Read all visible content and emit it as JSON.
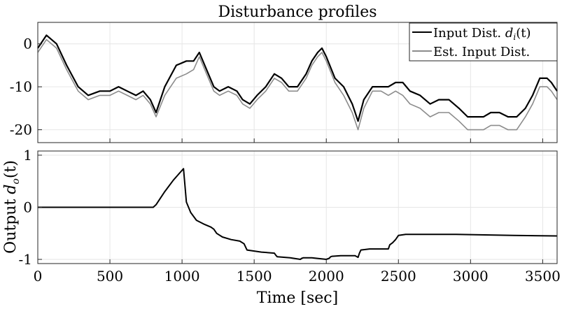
{
  "chart_data": [
    {
      "type": "line",
      "title": "Disturbance profiles",
      "xlabel": "",
      "ylabel": "",
      "xlim": [
        0,
        3600
      ],
      "ylim": [
        -23,
        5
      ],
      "yticks": [
        0,
        -10,
        -20
      ],
      "ytick_labels": [
        "0",
        "-10",
        "-20"
      ],
      "grid": true,
      "legend": "top-right",
      "legend_label_prefix": "Input Dist. ",
      "legend_label_math": "d",
      "legend_label_sub": "i",
      "legend_label_suffix": "(t)",
      "colors": {
        "series1": "#000000",
        "series2": "#8c8c8c"
      },
      "series": [
        {
          "name": "Input Dist. d_i(t)",
          "x": [
            0,
            60,
            130,
            200,
            280,
            350,
            430,
            500,
            560,
            620,
            680,
            730,
            780,
            820,
            880,
            960,
            1030,
            1080,
            1120,
            1170,
            1220,
            1260,
            1320,
            1380,
            1420,
            1470,
            1520,
            1580,
            1640,
            1690,
            1740,
            1800,
            1860,
            1900,
            1940,
            1970,
            2000,
            2060,
            2120,
            2180,
            2220,
            2260,
            2320,
            2380,
            2430,
            2480,
            2530,
            2580,
            2650,
            2720,
            2780,
            2850,
            2920,
            2980,
            3040,
            3090,
            3140,
            3200,
            3260,
            3320,
            3380,
            3430,
            3480,
            3530,
            3560,
            3600
          ],
          "values": [
            -1,
            2,
            0,
            -5,
            -10,
            -12,
            -11,
            -11,
            -10,
            -11,
            -12,
            -11,
            -13,
            -16,
            -10,
            -5,
            -4,
            -4,
            -2,
            -6,
            -10,
            -11,
            -10,
            -11,
            -13,
            -14,
            -12,
            -10,
            -7,
            -8,
            -10,
            -10,
            -7,
            -4,
            -2,
            -1,
            -3,
            -8,
            -10,
            -14,
            -18,
            -13,
            -10,
            -10,
            -10,
            -9,
            -9,
            -11,
            -12,
            -14,
            -13,
            -13,
            -15,
            -17,
            -17,
            -17,
            -16,
            -16,
            -17,
            -17,
            -15,
            -12,
            -8,
            -8,
            -9,
            -11
          ]
        },
        {
          "name": "Est. Input Dist.",
          "x": [
            0,
            60,
            130,
            200,
            280,
            350,
            430,
            500,
            560,
            620,
            680,
            730,
            780,
            820,
            880,
            960,
            1030,
            1080,
            1120,
            1170,
            1220,
            1260,
            1320,
            1380,
            1420,
            1470,
            1520,
            1580,
            1640,
            1690,
            1740,
            1800,
            1860,
            1900,
            1940,
            1970,
            2000,
            2060,
            2120,
            2180,
            2220,
            2260,
            2320,
            2380,
            2430,
            2480,
            2530,
            2580,
            2650,
            2720,
            2780,
            2850,
            2920,
            2980,
            3040,
            3090,
            3140,
            3200,
            3260,
            3320,
            3380,
            3430,
            3480,
            3530,
            3560,
            3600
          ],
          "values": [
            -2,
            1,
            -1,
            -6,
            -11,
            -13,
            -12,
            -12,
            -11,
            -12,
            -13,
            -12,
            -14,
            -17,
            -12,
            -8,
            -7,
            -6,
            -3,
            -7,
            -11,
            -12,
            -11,
            -12,
            -14,
            -15,
            -13,
            -11,
            -8,
            -9,
            -11,
            -11,
            -8,
            -5,
            -3,
            -2,
            -4,
            -9,
            -12,
            -16,
            -20,
            -15,
            -11,
            -11,
            -12,
            -11,
            -12,
            -14,
            -15,
            -17,
            -16,
            -16,
            -18,
            -20,
            -20,
            -20,
            -19,
            -19,
            -20,
            -20,
            -17,
            -14,
            -10,
            -10,
            -11,
            -13
          ]
        }
      ]
    },
    {
      "type": "line",
      "title": "",
      "xlabel": "Time [sec]",
      "ylabel_prefix": "Output ",
      "ylabel_math": "d",
      "ylabel_sub": "o",
      "ylabel_suffix": "(t)",
      "xlim": [
        0,
        3600
      ],
      "ylim": [
        -1.08,
        1.08
      ],
      "xticks": [
        0,
        500,
        1000,
        1500,
        2000,
        2500,
        3000,
        3500
      ],
      "xtick_labels": [
        "0",
        "500",
        "1000",
        "1500",
        "2000",
        "2500",
        "3000",
        "3500"
      ],
      "yticks": [
        1,
        0,
        -1
      ],
      "ytick_labels": [
        "1",
        "0",
        "-1"
      ],
      "grid": true,
      "colors": {
        "series1": "#000000"
      },
      "series": [
        {
          "x": [
            0,
            800,
            820,
            880,
            940,
            1000,
            1010,
            1030,
            1060,
            1100,
            1150,
            1200,
            1220,
            1240,
            1280,
            1340,
            1400,
            1430,
            1450,
            1550,
            1640,
            1650,
            1660,
            1750,
            1820,
            1830,
            1840,
            1900,
            2000,
            2020,
            2030,
            2040,
            2100,
            2200,
            2220,
            2230,
            2240,
            2300,
            2430,
            2440,
            2460,
            2480,
            2500,
            2550,
            2700,
            2900,
            3100,
            3300,
            3600
          ],
          "values": [
            0,
            0,
            0.05,
            0.3,
            0.52,
            0.71,
            0.74,
            0.1,
            -0.1,
            -0.25,
            -0.32,
            -0.38,
            -0.42,
            -0.5,
            -0.57,
            -0.62,
            -0.65,
            -0.7,
            -0.82,
            -0.86,
            -0.88,
            -0.92,
            -0.95,
            -0.97,
            -1.0,
            -0.98,
            -0.97,
            -0.97,
            -1.0,
            -0.98,
            -0.95,
            -0.94,
            -0.93,
            -0.93,
            -0.96,
            -0.88,
            -0.82,
            -0.8,
            -0.8,
            -0.72,
            -0.68,
            -0.62,
            -0.54,
            -0.52,
            -0.52,
            -0.52,
            -0.53,
            -0.54,
            -0.55
          ]
        }
      ]
    }
  ]
}
